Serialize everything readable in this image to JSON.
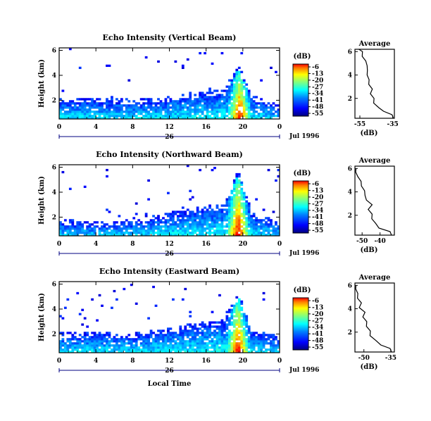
{
  "figure": {
    "xlabel_bottom": "Local Time",
    "date_label": "Jul 1996",
    "day_label": "26",
    "cbar_unit": "(dB)",
    "avg_title": "Average",
    "avg_xlabel": "(dB)",
    "ylabel": "Height (km)"
  },
  "chart_data": [
    {
      "type": "heatmap",
      "title": "Echo Intensity (Vertical Beam)",
      "xlabel": "",
      "ylabel": "Height (km)",
      "x_ticks": [
        "0",
        "4",
        "8",
        "12",
        "16",
        "20",
        "0"
      ],
      "y_ticks": [
        "2",
        "4",
        "6"
      ],
      "xlim": [
        0,
        24
      ],
      "ylim": [
        0.5,
        6.2
      ],
      "colorbar": {
        "label": "(dB)",
        "ticks": [
          "-6",
          "-13",
          "-20",
          "-27",
          "-34",
          "-41",
          "-48",
          "-55"
        ],
        "range": [
          -55,
          -6
        ]
      },
      "features": {
        "boundary_layer_top_km": [
          1.8,
          1.8,
          1.7,
          1.8,
          2.2,
          2.5,
          4.5,
          2.0,
          1.3
        ],
        "boundary_layer_time_h": [
          0,
          4,
          8,
          11,
          14,
          18,
          19.5,
          21,
          24
        ],
        "convective_peak_time_h": 19.7,
        "convective_peak_height_km": 4.6
      }
    },
    {
      "type": "heatmap",
      "title": "Echo Intensity (Northward Beam)",
      "xlabel": "",
      "ylabel": "Height (km)",
      "x_ticks": [
        "0",
        "4",
        "8",
        "12",
        "16",
        "20",
        "0"
      ],
      "y_ticks": [
        "2",
        "4",
        "6"
      ],
      "xlim": [
        0,
        24
      ],
      "ylim": [
        0.5,
        6.2
      ],
      "colorbar": {
        "label": "(dB)",
        "ticks": [
          "-6",
          "-13",
          "-20",
          "-27",
          "-34",
          "-41",
          "-48",
          "-55"
        ],
        "range": [
          -55,
          -6
        ]
      },
      "features": {
        "boundary_layer_top_km": [
          1.4,
          1.3,
          1.4,
          1.8,
          2.3,
          2.7,
          5.5,
          2.0,
          1.3
        ],
        "boundary_layer_time_h": [
          0,
          4,
          8,
          11,
          14,
          18,
          19.5,
          21,
          24
        ],
        "convective_peak_time_h": 19.5,
        "convective_peak_height_km": 5.5
      }
    },
    {
      "type": "heatmap",
      "title": "Echo Intensity (Eastward Beam)",
      "xlabel": "Local Time",
      "ylabel": "Height (km)",
      "x_ticks": [
        "0",
        "4",
        "8",
        "12",
        "16",
        "20",
        "0"
      ],
      "y_ticks": [
        "2",
        "4",
        "6"
      ],
      "xlim": [
        0,
        24
      ],
      "ylim": [
        0.5,
        6.2
      ],
      "colorbar": {
        "label": "(dB)",
        "ticks": [
          "-6",
          "-13",
          "-20",
          "-27",
          "-34",
          "-41",
          "-48",
          "-55"
        ],
        "range": [
          -55,
          -6
        ]
      },
      "features": {
        "boundary_layer_top_km": [
          1.7,
          1.8,
          1.7,
          2.0,
          2.4,
          2.8,
          5.0,
          2.0,
          1.5
        ],
        "boundary_layer_time_h": [
          0,
          4,
          8,
          11,
          14,
          18,
          19.5,
          21,
          24
        ],
        "convective_peak_time_h": 19.5,
        "convective_peak_height_km": 5.0
      }
    },
    {
      "type": "line",
      "title": "Average",
      "xlabel": "(dB)",
      "x_ticks": [
        "-55",
        "-35"
      ],
      "y_ticks": [
        "2",
        "4",
        "6"
      ],
      "xlim": [
        -58,
        -34
      ],
      "ylim": [
        0.3,
        6.2
      ],
      "series": [
        {
          "x": [
            -34,
            -36,
            -40,
            -44,
            -46,
            -47,
            -48,
            -48,
            -49,
            -50,
            -50,
            -51,
            -50,
            -52,
            -53,
            -54,
            -55
          ],
          "y": [
            0.3,
            0.6,
            0.9,
            1.2,
            1.6,
            2.0,
            2.4,
            2.8,
            3.2,
            3.6,
            4.0,
            4.4,
            4.8,
            5.2,
            5.6,
            6.0,
            6.2
          ]
        }
      ]
    },
    {
      "type": "line",
      "title": "Average",
      "xlabel": "(dB)",
      "x_ticks": [
        "-50",
        "-40"
      ],
      "y_ticks": [
        "2",
        "4",
        "6"
      ],
      "xlim": [
        -54,
        -32
      ],
      "ylim": [
        0.3,
        6.2
      ],
      "series": [
        {
          "x": [
            -33,
            -35,
            -40,
            -43,
            -44,
            -45,
            -46,
            -45,
            -47,
            -49,
            -48,
            -51,
            -50,
            -53,
            -53,
            -54
          ],
          "y": [
            0.3,
            0.6,
            0.9,
            1.3,
            1.7,
            2.1,
            2.5,
            2.9,
            3.3,
            3.7,
            4.1,
            4.5,
            4.9,
            5.3,
            5.7,
            6.0
          ]
        }
      ]
    },
    {
      "type": "line",
      "title": "Average",
      "xlabel": "(dB)",
      "x_ticks": [
        "-50",
        "-35"
      ],
      "y_ticks": [
        "2",
        "4",
        "6"
      ],
      "xlim": [
        -55,
        -33
      ],
      "ylim": [
        0.3,
        6.2
      ],
      "series": [
        {
          "x": [
            -34,
            -36,
            -40,
            -44,
            -46,
            -47,
            -48,
            -49,
            -50,
            -50,
            -52,
            -52,
            -53,
            -54,
            -54,
            -55
          ],
          "y": [
            0.3,
            0.6,
            0.9,
            1.3,
            1.7,
            2.1,
            2.5,
            2.9,
            3.3,
            3.7,
            4.1,
            4.5,
            4.9,
            5.3,
            5.7,
            6.0
          ]
        }
      ]
    }
  ]
}
